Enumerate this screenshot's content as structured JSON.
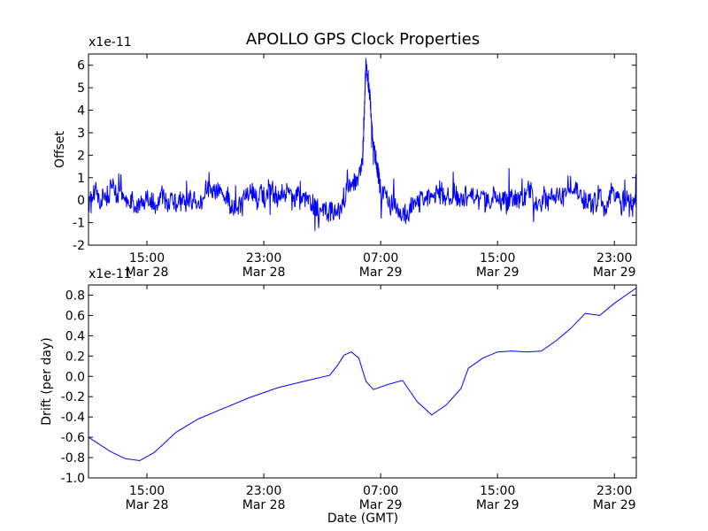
{
  "figure_title": "APOLLO GPS Clock Properties",
  "chart_data": [
    {
      "type": "line",
      "ylabel": "Offset",
      "y_multiplier": "x1e-11",
      "xlabel": "",
      "ylim": [
        -2,
        6.5
      ],
      "xlim": [
        "2015-03-28 11:00",
        "2015-03-30 00:30"
      ],
      "yticks": [
        "-2",
        "-1",
        "0",
        "1",
        "2",
        "3",
        "4",
        "5",
        "6"
      ],
      "xticks": [
        {
          "t": "2015-03-28 15:00",
          "time": "15:00",
          "date": "Mar 28"
        },
        {
          "t": "2015-03-28 23:00",
          "time": "23:00",
          "date": "Mar 28"
        },
        {
          "t": "2015-03-29 07:00",
          "time": "07:00",
          "date": "Mar 29"
        },
        {
          "t": "2015-03-29 15:00",
          "time": "15:00",
          "date": "Mar 29"
        },
        {
          "t": "2015-03-29 23:00",
          "time": "23:00",
          "date": "Mar 29"
        }
      ],
      "color": "#0000ff",
      "series": [
        {
          "style": "noisy",
          "points": [
            [
              "2015-03-28 11:00",
              0.2
            ],
            [
              "2015-03-28 12:00",
              0.3
            ],
            [
              "2015-03-28 13:00",
              0.2
            ],
            [
              "2015-03-28 14:00",
              0.0
            ],
            [
              "2015-03-28 15:00",
              -0.1
            ],
            [
              "2015-03-28 16:00",
              0.1
            ],
            [
              "2015-03-28 17:00",
              0.0
            ],
            [
              "2015-03-28 18:00",
              -0.5
            ],
            [
              "2015-03-28 19:00",
              0.4
            ],
            [
              "2015-03-28 20:00",
              0.5
            ],
            [
              "2015-03-28 21:00",
              -0.3
            ],
            [
              "2015-03-28 22:00",
              0.4
            ],
            [
              "2015-03-28 23:00",
              0.1
            ],
            [
              "2015-03-29 00:00",
              0.2
            ],
            [
              "2015-03-29 01:00",
              0.0
            ],
            [
              "2015-03-29 02:00",
              0.1
            ],
            [
              "2015-03-29 03:00",
              -0.4
            ],
            [
              "2015-03-29 04:00",
              -0.5
            ],
            [
              "2015-03-29 05:00",
              0.4
            ],
            [
              "2015-03-29 05:45",
              1.5
            ],
            [
              "2015-03-29 06:00",
              6.3
            ],
            [
              "2015-03-29 06:30",
              2.5
            ],
            [
              "2015-03-29 07:00",
              0.5
            ],
            [
              "2015-03-29 08:00",
              -0.3
            ],
            [
              "2015-03-29 09:00",
              -0.6
            ],
            [
              "2015-03-29 10:00",
              0.3
            ],
            [
              "2015-03-29 11:00",
              0.2
            ],
            [
              "2015-03-29 12:00",
              0.1
            ],
            [
              "2015-03-29 13:00",
              0.2
            ],
            [
              "2015-03-29 14:00",
              0.0
            ],
            [
              "2015-03-29 15:00",
              0.1
            ],
            [
              "2015-03-29 16:00",
              -0.1
            ],
            [
              "2015-03-29 17:00",
              0.0
            ],
            [
              "2015-03-29 18:00",
              0.1
            ],
            [
              "2015-03-29 19:00",
              0.2
            ],
            [
              "2015-03-29 20:00",
              0.3
            ],
            [
              "2015-03-29 21:00",
              0.0
            ],
            [
              "2015-03-29 22:00",
              -0.2
            ],
            [
              "2015-03-29 23:00",
              0.1
            ],
            [
              "2015-03-30 00:00",
              -0.1
            ],
            [
              "2015-03-30 00:30",
              -0.1
            ]
          ]
        }
      ]
    },
    {
      "type": "line",
      "ylabel": "Drift (per day)",
      "y_multiplier": "x1e-11",
      "xlabel": "Date (GMT)",
      "ylim": [
        -1.0,
        0.9
      ],
      "xlim": [
        "2015-03-28 11:00",
        "2015-03-30 00:30"
      ],
      "yticks": [
        "-1.0",
        "-0.8",
        "-0.6",
        "-0.4",
        "-0.2",
        "0.0",
        "0.2",
        "0.4",
        "0.6",
        "0.8"
      ],
      "xticks": [
        {
          "t": "2015-03-28 15:00",
          "time": "15:00",
          "date": "Mar 28"
        },
        {
          "t": "2015-03-28 23:00",
          "time": "23:00",
          "date": "Mar 28"
        },
        {
          "t": "2015-03-29 07:00",
          "time": "07:00",
          "date": "Mar 29"
        },
        {
          "t": "2015-03-29 15:00",
          "time": "15:00",
          "date": "Mar 29"
        },
        {
          "t": "2015-03-29 23:00",
          "time": "23:00",
          "date": "Mar 29"
        }
      ],
      "color": "#0000ff",
      "series": [
        {
          "style": "smooth",
          "points": [
            [
              "2015-03-28 11:00",
              -0.6
            ],
            [
              "2015-03-28 12:30",
              -0.74
            ],
            [
              "2015-03-28 13:30",
              -0.81
            ],
            [
              "2015-03-28 14:30",
              -0.83
            ],
            [
              "2015-03-28 15:30",
              -0.75
            ],
            [
              "2015-03-28 17:00",
              -0.55
            ],
            [
              "2015-03-28 18:30",
              -0.42
            ],
            [
              "2015-03-28 20:00",
              -0.33
            ],
            [
              "2015-03-28 22:00",
              -0.21
            ],
            [
              "2015-03-29 00:00",
              -0.11
            ],
            [
              "2015-03-29 02:00",
              -0.04
            ],
            [
              "2015-03-29 03:30",
              0.01
            ],
            [
              "2015-03-29 04:00",
              0.1
            ],
            [
              "2015-03-29 04:30",
              0.21
            ],
            [
              "2015-03-29 05:00",
              0.24
            ],
            [
              "2015-03-29 05:30",
              0.18
            ],
            [
              "2015-03-29 06:00",
              -0.05
            ],
            [
              "2015-03-29 06:30",
              -0.13
            ],
            [
              "2015-03-29 07:30",
              -0.08
            ],
            [
              "2015-03-29 08:30",
              -0.04
            ],
            [
              "2015-03-29 09:30",
              -0.25
            ],
            [
              "2015-03-29 10:30",
              -0.38
            ],
            [
              "2015-03-29 11:30",
              -0.28
            ],
            [
              "2015-03-29 12:30",
              -0.12
            ],
            [
              "2015-03-29 13:00",
              0.08
            ],
            [
              "2015-03-29 14:00",
              0.18
            ],
            [
              "2015-03-29 15:00",
              0.24
            ],
            [
              "2015-03-29 16:00",
              0.25
            ],
            [
              "2015-03-29 17:00",
              0.24
            ],
            [
              "2015-03-29 18:00",
              0.25
            ],
            [
              "2015-03-29 19:00",
              0.35
            ],
            [
              "2015-03-29 20:00",
              0.47
            ],
            [
              "2015-03-29 21:00",
              0.62
            ],
            [
              "2015-03-29 22:00",
              0.6
            ],
            [
              "2015-03-29 23:00",
              0.72
            ],
            [
              "2015-03-30 00:30",
              0.87
            ]
          ]
        }
      ]
    }
  ]
}
